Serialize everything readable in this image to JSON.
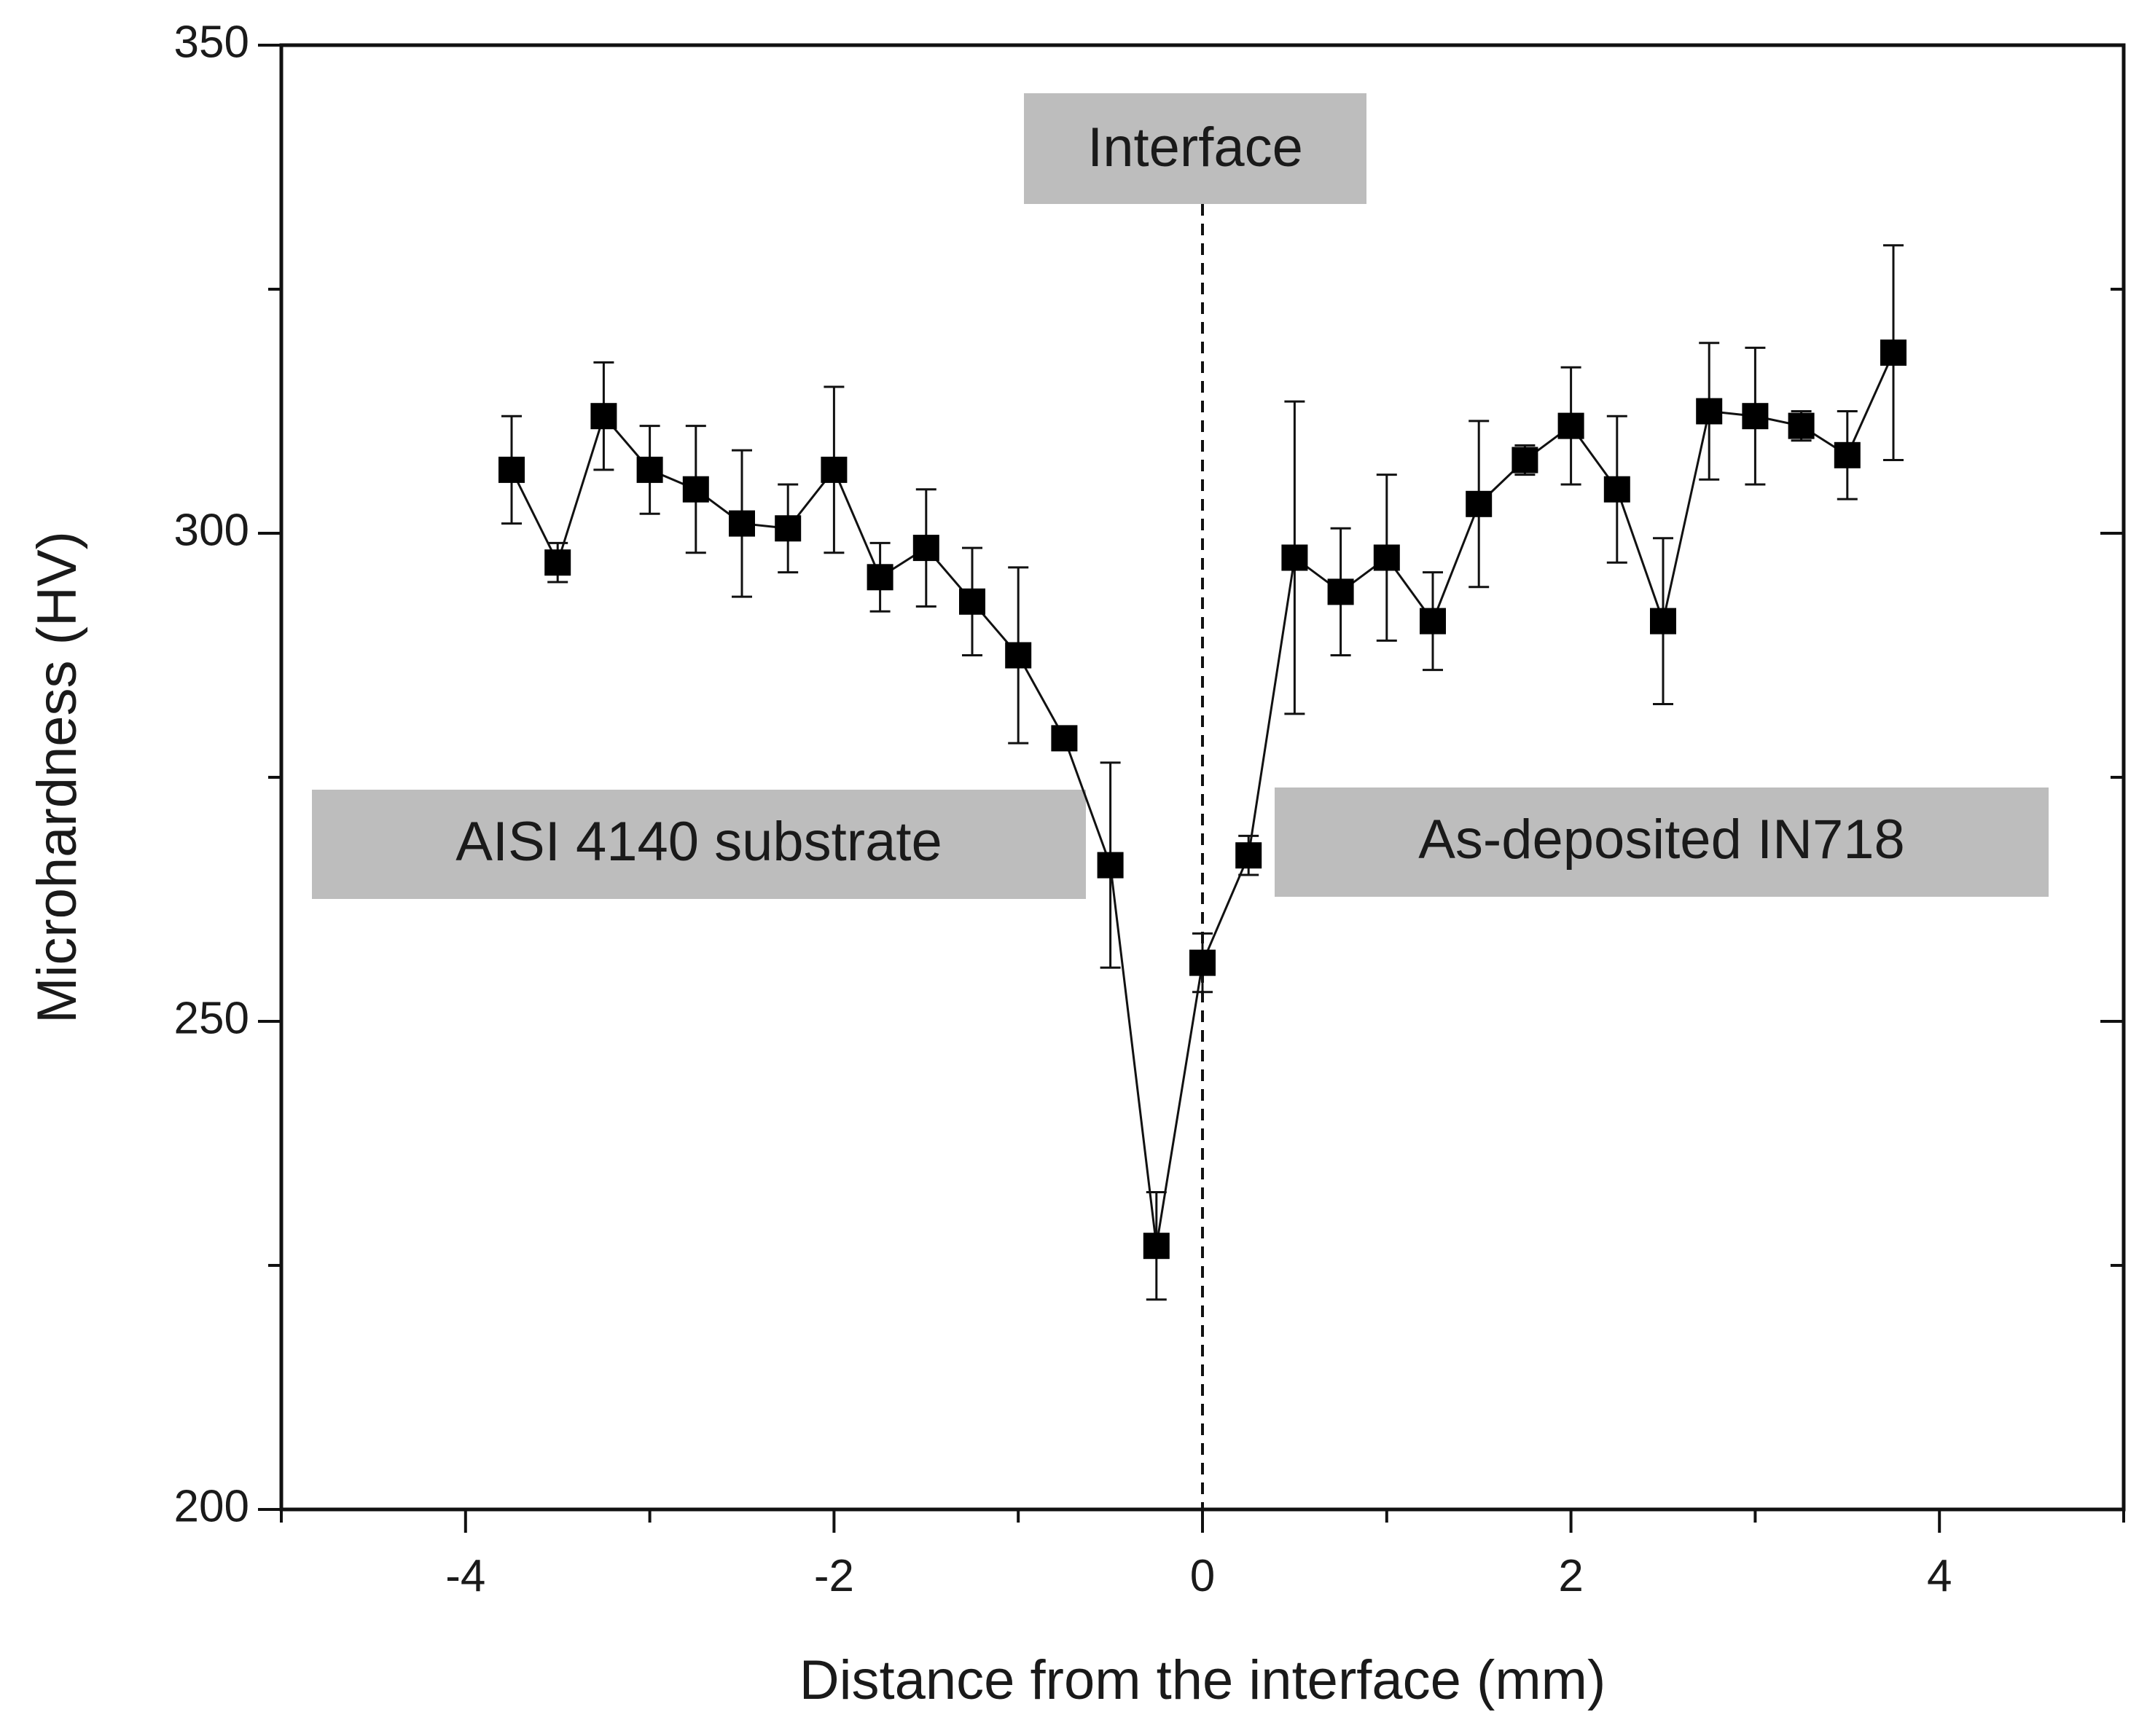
{
  "chart_data": {
    "type": "scatter",
    "title": "",
    "xlabel": "Distance from the interface (mm)",
    "ylabel": "Microhardness (HV)",
    "xlim": [
      -5,
      5
    ],
    "ylim": [
      200,
      350
    ],
    "x_ticks": [
      -4,
      -2,
      0,
      2,
      4
    ],
    "x_tick_labels": [
      "-4",
      "-2",
      "0",
      "2",
      "4"
    ],
    "y_ticks": [
      200,
      250,
      300,
      350
    ],
    "y_tick_labels": [
      "200",
      "250",
      "300",
      "350"
    ],
    "interface_x": 0,
    "annotations": [
      {
        "text": "Interface"
      },
      {
        "text": "AISI 4140 substrate"
      },
      {
        "text": "As-deposited IN718"
      }
    ],
    "series": [
      {
        "name": "Microhardness",
        "marker": "square",
        "color": "#000000",
        "x": [
          -3.75,
          -3.5,
          -3.25,
          -3.0,
          -2.75,
          -2.5,
          -2.25,
          -2.0,
          -1.75,
          -1.5,
          -1.25,
          -1.0,
          -0.75,
          -0.5,
          -0.25,
          0.0,
          0.25,
          0.5,
          0.75,
          1.0,
          1.25,
          1.5,
          1.75,
          2.0,
          2.25,
          2.5,
          2.75,
          3.0,
          3.25,
          3.5,
          3.75
        ],
        "y": [
          306.5,
          297,
          312,
          306.5,
          304.5,
          301,
          300.5,
          306.5,
          295.5,
          298.5,
          293,
          287.5,
          279,
          266,
          227,
          256,
          267,
          297.5,
          294,
          297.5,
          291,
          303,
          307.5,
          311,
          304.5,
          291,
          312.5,
          312,
          311,
          308,
          318.5
        ],
        "error": [
          5.5,
          2,
          5.5,
          4.5,
          6.5,
          7.5,
          4.5,
          8.5,
          3.5,
          6,
          5.5,
          9,
          0,
          10.5,
          5.5,
          3,
          2,
          16,
          6.5,
          8.5,
          5,
          8.5,
          1.5,
          6,
          7.5,
          8.5,
          7,
          7,
          1.5,
          4.5,
          11
        ]
      }
    ]
  }
}
